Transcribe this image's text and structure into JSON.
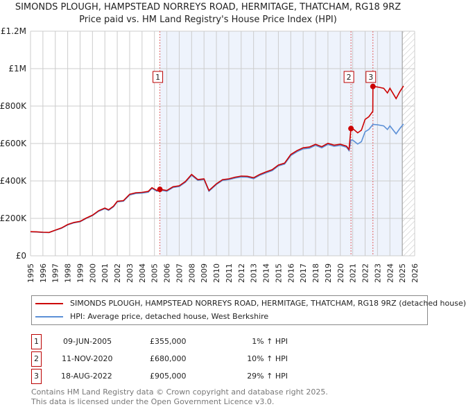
{
  "title": "SIMONDS PLOUGH, HAMPSTEAD NORREYS ROAD, HERMITAGE, THATCHAM, RG18 9RZ",
  "subtitle": "Price paid vs. HM Land Registry's House Price Index (HPI)",
  "chart_data": {
    "type": "line",
    "title": "SIMONDS PLOUGH, HAMPSTEAD NORREYS ROAD, HERMITAGE, THATCHAM, RG18 9RZ",
    "subtitle": "Price paid vs. HM Land Registry's House Price Index (HPI)",
    "xlim": [
      1995,
      2026
    ],
    "ylim": [
      0,
      1200000
    ],
    "x_ticks": [
      "1995",
      "1996",
      "1997",
      "1998",
      "1999",
      "2000",
      "2001",
      "2002",
      "2003",
      "2004",
      "2005",
      "2006",
      "2007",
      "2008",
      "2009",
      "2010",
      "2011",
      "2012",
      "2013",
      "2014",
      "2015",
      "2016",
      "2017",
      "2018",
      "2019",
      "2020",
      "2021",
      "2022",
      "2023",
      "2024",
      "2025",
      "2026"
    ],
    "y_ticks": [
      {
        "value": 0,
        "label": "£0"
      },
      {
        "value": 200000,
        "label": "£200K"
      },
      {
        "value": 400000,
        "label": "£400K"
      },
      {
        "value": 600000,
        "label": "£600K"
      },
      {
        "value": 800000,
        "label": "£800K"
      },
      {
        "value": 1000000,
        "label": "£1M"
      },
      {
        "value": 1200000,
        "label": "£1.2M"
      }
    ],
    "grid": true,
    "shaded_range": [
      2005.44,
      2025.0
    ],
    "hatched_from": 2025.0,
    "colors": {
      "property": "#cc0000",
      "hpi": "#5b8fd6",
      "shade": "#eef3fc"
    },
    "series": [
      {
        "name": "SIMONDS PLOUGH, HAMPSTEAD NORREYS ROAD, HERMITAGE, THATCHAM, RG18 9RZ (detached house)",
        "x": [
          1995.0,
          1995.5,
          1996.0,
          1996.5,
          1997.0,
          1997.5,
          1998.0,
          1998.5,
          1999.0,
          1999.5,
          2000.0,
          2000.5,
          2001.0,
          2001.3,
          2001.7,
          2002.0,
          2002.5,
          2003.0,
          2003.5,
          2004.0,
          2004.5,
          2004.8,
          2005.2,
          2005.44,
          2006.0,
          2006.5,
          2007.0,
          2007.5,
          2008.0,
          2008.5,
          2009.0,
          2009.4,
          2010.0,
          2010.5,
          2011.0,
          2011.5,
          2012.0,
          2012.5,
          2013.0,
          2013.5,
          2014.0,
          2014.5,
          2015.0,
          2015.5,
          2016.0,
          2016.5,
          2017.0,
          2017.5,
          2018.0,
          2018.5,
          2019.0,
          2019.5,
          2020.0,
          2020.5,
          2020.7,
          2020.86,
          2021.0,
          2021.4,
          2021.7,
          2022.0,
          2022.3,
          2022.62,
          2022.63,
          2023.0,
          2023.5,
          2023.8,
          2024.0,
          2024.5,
          2024.8,
          2025.1
        ],
        "values": [
          129000,
          128000,
          126000,
          125000,
          137000,
          149000,
          167000,
          178000,
          184000,
          202000,
          217000,
          241000,
          255000,
          246000,
          265000,
          291000,
          295000,
          329000,
          337000,
          339000,
          344000,
          364000,
          349000,
          355000,
          349000,
          369000,
          374000,
          397000,
          435000,
          407000,
          411000,
          349000,
          385000,
          407000,
          411000,
          420000,
          426000,
          425000,
          417000,
          435000,
          448000,
          460000,
          485000,
          495000,
          541000,
          562000,
          577000,
          581000,
          596000,
          583000,
          601000,
          591000,
          596000,
          586000,
          568000,
          680000,
          680000,
          657000,
          671000,
          729000,
          743000,
          772000,
          905000,
          902000,
          895000,
          870000,
          895000,
          840000,
          877000,
          907000
        ]
      },
      {
        "name": "HPI: Average price, detached house, West Berkshire",
        "x": [
          1995.0,
          1995.5,
          1996.0,
          1996.5,
          1997.0,
          1997.5,
          1998.0,
          1998.5,
          1999.0,
          1999.5,
          2000.0,
          2000.5,
          2001.0,
          2001.3,
          2001.7,
          2002.0,
          2002.5,
          2003.0,
          2003.5,
          2004.0,
          2004.5,
          2004.8,
          2005.2,
          2005.44,
          2006.0,
          2006.5,
          2007.0,
          2007.5,
          2008.0,
          2008.5,
          2009.0,
          2009.4,
          2010.0,
          2010.5,
          2011.0,
          2011.5,
          2012.0,
          2012.5,
          2013.0,
          2013.5,
          2014.0,
          2014.5,
          2015.0,
          2015.5,
          2016.0,
          2016.5,
          2017.0,
          2017.5,
          2018.0,
          2018.5,
          2019.0,
          2019.5,
          2020.0,
          2020.5,
          2020.7,
          2020.86,
          2021.0,
          2021.4,
          2021.7,
          2022.0,
          2022.3,
          2022.63,
          2023.0,
          2023.5,
          2023.8,
          2024.0,
          2024.5,
          2024.8,
          2025.1
        ],
        "values": [
          128000,
          127000,
          125000,
          124000,
          136000,
          147000,
          165000,
          176000,
          182000,
          200000,
          215000,
          238000,
          252000,
          243000,
          262000,
          288000,
          292000,
          325000,
          333000,
          335000,
          340000,
          360000,
          345000,
          351000,
          345000,
          365000,
          370000,
          393000,
          430000,
          403000,
          407000,
          345000,
          381000,
          403000,
          407000,
          415000,
          421000,
          420000,
          412000,
          430000,
          443000,
          455000,
          480000,
          490000,
          535000,
          556000,
          571000,
          575000,
          590000,
          577000,
          595000,
          585000,
          590000,
          580000,
          562000,
          618000,
          618000,
          597000,
          610000,
          663000,
          675000,
          702000,
          700000,
          694000,
          675000,
          694000,
          652000,
          680000,
          704000
        ]
      }
    ],
    "sales": [
      {
        "id": "1",
        "x": 2005.44,
        "value": 355000
      },
      {
        "id": "2",
        "x": 2020.86,
        "value": 680000
      },
      {
        "id": "3",
        "x": 2022.63,
        "value": 905000
      }
    ]
  },
  "legend": {
    "property": "SIMONDS PLOUGH, HAMPSTEAD NORREYS ROAD, HERMITAGE, THATCHAM, RG18 9RZ (detached house)",
    "hpi": "HPI: Average price, detached house, West Berkshire"
  },
  "transactions": [
    {
      "num": "1",
      "date": "09-JUN-2005",
      "price": "£355,000",
      "hpi": "1% ↑ HPI"
    },
    {
      "num": "2",
      "date": "11-NOV-2020",
      "price": "£680,000",
      "hpi": "10% ↑ HPI"
    },
    {
      "num": "3",
      "date": "18-AUG-2022",
      "price": "£905,000",
      "hpi": "29% ↑ HPI"
    }
  ],
  "footer": {
    "line1": "Contains HM Land Registry data © Crown copyright and database right 2025.",
    "line2": "This data is licensed under the Open Government Licence v3.0."
  }
}
